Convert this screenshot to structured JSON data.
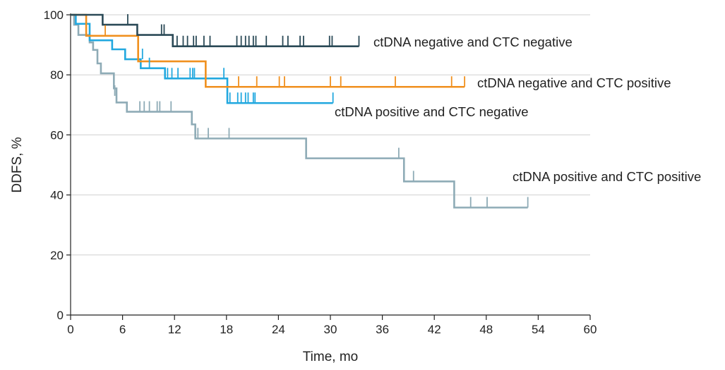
{
  "chart_data": {
    "type": "line",
    "step": true,
    "xlabel": "Time, mo",
    "ylabel": "DDFS, %",
    "xlim": [
      0,
      60
    ],
    "ylim": [
      0,
      100
    ],
    "xticks": [
      "0",
      "6",
      "12",
      "18",
      "24",
      "30",
      "36",
      "42",
      "48",
      "54",
      "60"
    ],
    "yticks": [
      "0",
      "20",
      "40",
      "60",
      "80",
      "100"
    ],
    "grid": "horizontal",
    "series": [
      {
        "name": "ctDNA negative and CTC negative",
        "color": "#2b4a57",
        "points": [
          [
            0,
            100
          ],
          [
            3.7,
            100
          ],
          [
            3.7,
            96.7
          ],
          [
            7.7,
            96.7
          ],
          [
            7.7,
            93.3
          ],
          [
            11.8,
            93.3
          ],
          [
            11.8,
            89.5
          ],
          [
            33.3,
            89.5
          ]
        ],
        "censored": [
          [
            6.6,
            96.7
          ],
          [
            10.5,
            93.3
          ],
          [
            10.8,
            93.3
          ],
          [
            12.3,
            89.5
          ],
          [
            13,
            89.5
          ],
          [
            13.5,
            89.5
          ],
          [
            14.2,
            89.5
          ],
          [
            14.5,
            89.5
          ],
          [
            15.4,
            89.5
          ],
          [
            16.1,
            89.5
          ],
          [
            19.2,
            89.5
          ],
          [
            19.7,
            89.5
          ],
          [
            20.2,
            89.5
          ],
          [
            20.6,
            89.5
          ],
          [
            21.1,
            89.5
          ],
          [
            21.4,
            89.5
          ],
          [
            22.6,
            89.5
          ],
          [
            24.5,
            89.5
          ],
          [
            25.1,
            89.5
          ],
          [
            26.5,
            89.5
          ],
          [
            26.9,
            89.5
          ],
          [
            29.9,
            89.5
          ],
          [
            30.2,
            89.5
          ],
          [
            33.3,
            89.5
          ]
        ]
      },
      {
        "name": "ctDNA negative and CTC positive",
        "color": "#f0901e",
        "points": [
          [
            0,
            100
          ],
          [
            1.8,
            100
          ],
          [
            1.8,
            93
          ],
          [
            7.8,
            93
          ],
          [
            7.8,
            84.5
          ],
          [
            15.6,
            84.5
          ],
          [
            15.6,
            76
          ],
          [
            45.5,
            76
          ]
        ],
        "censored": [
          [
            4,
            93
          ],
          [
            19.4,
            76
          ],
          [
            21.5,
            76
          ],
          [
            24.1,
            76
          ],
          [
            24.7,
            76
          ],
          [
            30,
            76
          ],
          [
            31.2,
            76
          ],
          [
            37.5,
            76
          ],
          [
            44,
            76
          ],
          [
            45.5,
            76
          ]
        ]
      },
      {
        "name": "ctDNA positive and CTC negative",
        "color": "#22a8df",
        "points": [
          [
            0,
            100
          ],
          [
            0.6,
            100
          ],
          [
            0.6,
            97
          ],
          [
            2.2,
            97
          ],
          [
            2.2,
            91.5
          ],
          [
            4.8,
            91.5
          ],
          [
            4.8,
            88.5
          ],
          [
            6.3,
            88.5
          ],
          [
            6.3,
            85.2
          ],
          [
            8.1,
            85.2
          ],
          [
            8.1,
            82.2
          ],
          [
            10.9,
            82.2
          ],
          [
            10.9,
            78.8
          ],
          [
            18.1,
            78.8
          ],
          [
            18.1,
            70.6
          ],
          [
            30.3,
            70.6
          ]
        ],
        "censored": [
          [
            8.3,
            85.2
          ],
          [
            9.1,
            82.2
          ],
          [
            11.2,
            78.8
          ],
          [
            11.7,
            78.8
          ],
          [
            12.4,
            78.8
          ],
          [
            13.8,
            78.8
          ],
          [
            14.1,
            78.8
          ],
          [
            14.3,
            78.8
          ],
          [
            17.7,
            78.8
          ],
          [
            18.4,
            70.6
          ],
          [
            19.3,
            70.6
          ],
          [
            19.7,
            70.6
          ],
          [
            20.2,
            70.6
          ],
          [
            20.5,
            70.6
          ],
          [
            21.1,
            70.6
          ],
          [
            21.3,
            70.6
          ],
          [
            30.3,
            70.6
          ]
        ]
      },
      {
        "name": "ctDNA positive and CTC positive",
        "color": "#8eabb6",
        "points": [
          [
            0,
            100
          ],
          [
            0.4,
            100
          ],
          [
            0.4,
            96.7
          ],
          [
            0.9,
            96.7
          ],
          [
            0.9,
            93.3
          ],
          [
            2.2,
            93.3
          ],
          [
            2.2,
            90.8
          ],
          [
            2.6,
            90.8
          ],
          [
            2.6,
            88.3
          ],
          [
            3.1,
            88.3
          ],
          [
            3.1,
            83.8
          ],
          [
            3.5,
            83.8
          ],
          [
            3.5,
            80.5
          ],
          [
            5,
            80.5
          ],
          [
            5,
            75.5
          ],
          [
            5.3,
            75.5
          ],
          [
            5.3,
            70.8
          ],
          [
            6.5,
            70.8
          ],
          [
            6.5,
            67.7
          ],
          [
            14,
            67.7
          ],
          [
            14,
            63.5
          ],
          [
            14.4,
            63.5
          ],
          [
            14.4,
            58.8
          ],
          [
            27.2,
            58.8
          ],
          [
            27.2,
            52.2
          ],
          [
            38.5,
            52.2
          ],
          [
            38.5,
            44.5
          ],
          [
            44.3,
            44.5
          ],
          [
            44.3,
            35.8
          ],
          [
            52.8,
            35.8
          ]
        ],
        "censored": [
          [
            5.1,
            73
          ],
          [
            8,
            67.7
          ],
          [
            8.5,
            67.7
          ],
          [
            9.1,
            67.7
          ],
          [
            10,
            67.7
          ],
          [
            10.3,
            67.7
          ],
          [
            11.6,
            67.7
          ],
          [
            14.7,
            58.8
          ],
          [
            15.9,
            58.8
          ],
          [
            18.3,
            58.8
          ],
          [
            37.9,
            52.2
          ],
          [
            39.6,
            44.5
          ],
          [
            46.2,
            35.8
          ],
          [
            48.1,
            35.8
          ],
          [
            52.8,
            35.8
          ]
        ]
      }
    ]
  }
}
